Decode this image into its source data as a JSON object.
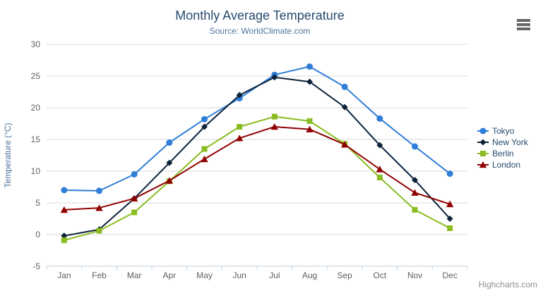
{
  "header": {
    "menu_icon": "hamburger-icon"
  },
  "credits": "Highcharts.com",
  "chart_data": {
    "type": "line",
    "title": "Monthly Average Temperature",
    "subtitle": "Source: WorldClimate.com",
    "xlabel": "",
    "ylabel": "Temperature (°C)",
    "ylim": [
      -5,
      30
    ],
    "yticks": [
      -5,
      0,
      5,
      10,
      15,
      20,
      25,
      30
    ],
    "grid": true,
    "legend_position": "right",
    "categories": [
      "Jan",
      "Feb",
      "Mar",
      "Apr",
      "May",
      "Jun",
      "Jul",
      "Aug",
      "Sep",
      "Oct",
      "Nov",
      "Dec"
    ],
    "series": [
      {
        "name": "Tokyo",
        "color": "#2f7ed8",
        "marker": "circle",
        "values": [
          7.0,
          6.9,
          9.5,
          14.5,
          18.2,
          21.5,
          25.2,
          26.5,
          23.3,
          18.3,
          13.9,
          9.6
        ]
      },
      {
        "name": "New York",
        "color": "#0d233a",
        "marker": "diamond",
        "values": [
          -0.2,
          0.8,
          5.7,
          11.3,
          17.0,
          22.0,
          24.8,
          24.1,
          20.1,
          14.1,
          8.6,
          2.5
        ]
      },
      {
        "name": "Berlin",
        "color": "#8bbc21",
        "marker": "square",
        "values": [
          -0.9,
          0.6,
          3.5,
          8.4,
          13.5,
          17.0,
          18.6,
          17.9,
          14.3,
          9.0,
          3.9,
          1.0
        ]
      },
      {
        "name": "London",
        "color": "#910000",
        "marker": "triangle",
        "values": [
          3.9,
          4.2,
          5.7,
          8.5,
          11.9,
          15.2,
          17.0,
          16.6,
          14.2,
          10.3,
          6.6,
          4.8
        ]
      }
    ],
    "colors": {
      "title": "#274b6d",
      "subtitle": "#4d759e",
      "axis_title": "#4d759e",
      "axis_labels": "#606060",
      "gridline": "#d8d8d8",
      "axis_line": "#c0d0e0",
      "legend_text": "#274b6d"
    }
  }
}
